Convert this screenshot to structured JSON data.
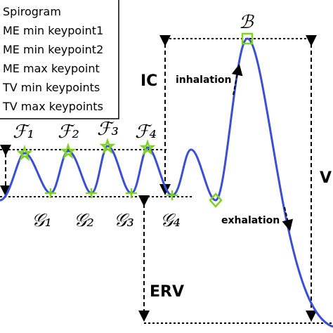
{
  "legend": [
    "Spirogram",
    "ME min keypoint1",
    "ME min keypoint2",
    "ME max keypoint",
    "TV min keypoints",
    "TV max keypoints"
  ],
  "labels": {
    "f": [
      "ℱ₁",
      "ℱ₂",
      "ℱ₃",
      "ℱ₄"
    ],
    "g": [
      "𝒢₁",
      "𝒢₂",
      "𝒢₃",
      "𝒢₄"
    ],
    "b": "ℬ",
    "ic": "IC",
    "erv": "ERV",
    "v": "V",
    "inhalation": "inhalation",
    "exhalation": "exhalation"
  }
}
